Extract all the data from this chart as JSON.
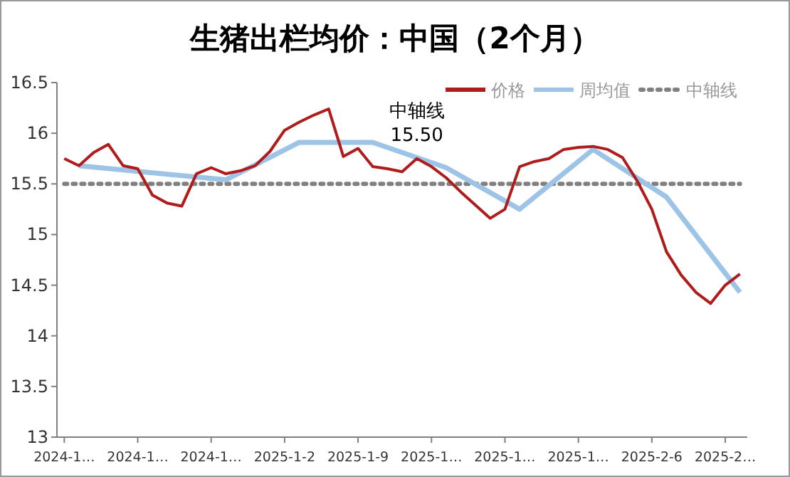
{
  "chart_data": {
    "type": "line",
    "title": "生猪出栏均价：中国（2个月）",
    "categories": [
      "2024-1…",
      null,
      null,
      null,
      null,
      "2024-1…",
      null,
      null,
      null,
      null,
      "2024-1…",
      null,
      null,
      null,
      null,
      "2025-1-2",
      null,
      null,
      null,
      null,
      "2025-1-9",
      null,
      null,
      null,
      null,
      "2025-1…",
      null,
      null,
      null,
      null,
      "2025-1…",
      null,
      null,
      null,
      null,
      "2025-1…",
      null,
      null,
      null,
      null,
      "2025-2-6",
      null,
      null,
      null,
      null,
      "2025-2…",
      null
    ],
    "series": [
      {
        "name": "价格",
        "color": "#b01c1c",
        "values": [
          15.75,
          15.68,
          15.81,
          15.89,
          15.68,
          15.65,
          15.39,
          15.31,
          15.28,
          15.6,
          15.66,
          15.6,
          15.63,
          15.68,
          15.82,
          16.03,
          16.11,
          16.18,
          16.24,
          15.77,
          15.85,
          15.67,
          15.65,
          15.62,
          15.75,
          15.67,
          15.56,
          15.42,
          15.29,
          15.16,
          15.25,
          15.67,
          15.72,
          15.75,
          15.84,
          15.86,
          15.87,
          15.84,
          15.76,
          15.53,
          15.25,
          14.83,
          14.6,
          14.43,
          14.32,
          14.5,
          14.61
        ]
      },
      {
        "name": "周均值",
        "color": "#9dc3e6",
        "values": [
          null,
          15.68,
          null,
          null,
          null,
          null,
          null,
          null,
          null,
          null,
          null,
          15.54,
          null,
          null,
          null,
          null,
          15.91,
          null,
          null,
          null,
          null,
          15.91,
          null,
          null,
          null,
          null,
          15.66,
          null,
          null,
          null,
          null,
          15.25,
          null,
          null,
          null,
          null,
          15.84,
          null,
          null,
          null,
          null,
          15.37,
          null,
          null,
          null,
          null,
          14.43
        ]
      },
      {
        "name": "中轴线",
        "color": "#808080",
        "line_style": "dotted",
        "values": [
          15.5,
          15.5,
          15.5,
          15.5,
          15.5,
          15.5,
          15.5,
          15.5,
          15.5,
          15.5,
          15.5,
          15.5,
          15.5,
          15.5,
          15.5,
          15.5,
          15.5,
          15.5,
          15.5,
          15.5,
          15.5,
          15.5,
          15.5,
          15.5,
          15.5,
          15.5,
          15.5,
          15.5,
          15.5,
          15.5,
          15.5,
          15.5,
          15.5,
          15.5,
          15.5,
          15.5,
          15.5,
          15.5,
          15.5,
          15.5,
          15.5,
          15.5,
          15.5,
          15.5,
          15.5,
          15.5,
          15.5
        ]
      }
    ],
    "annotations": [
      "中轴线\n15.50"
    ],
    "ylim": [
      13,
      16.5
    ],
    "yticks": [
      13,
      13.5,
      14,
      14.5,
      15,
      15.5,
      16,
      16.5
    ],
    "legend": "top right",
    "grid": false,
    "marker": "none"
  }
}
